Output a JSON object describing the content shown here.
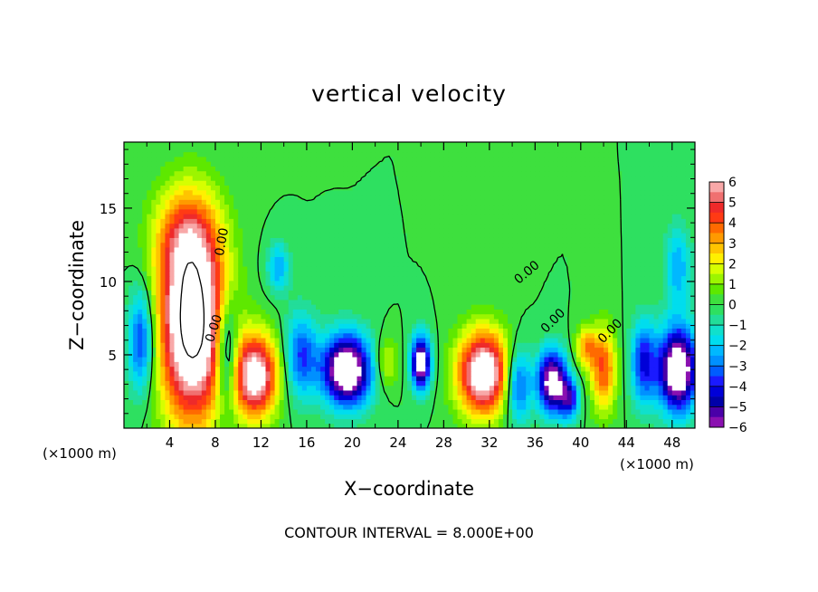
{
  "chart_data": {
    "type": "heatmap",
    "title": "vertical velocity",
    "xlabel": "X−coordinate",
    "ylabel": "Z−coordinate",
    "x_unit_left": "(×1000 m)",
    "x_unit_right": "(×1000 m)",
    "footer": "CONTOUR INTERVAL = 8.000E+00",
    "xlim": [
      0,
      50
    ],
    "ylim": [
      0,
      19.5
    ],
    "x_ticks": [
      4,
      8,
      12,
      16,
      20,
      24,
      28,
      32,
      36,
      40,
      44,
      48
    ],
    "y_ticks": [
      5,
      10,
      15
    ],
    "x_tick_labels": [
      "4",
      "8",
      "12",
      "16",
      "20",
      "24",
      "28",
      "32",
      "36",
      "40",
      "44",
      "48"
    ],
    "y_tick_labels": [
      "5",
      "10",
      "15"
    ],
    "colorbar": {
      "range": [
        -6,
        6
      ],
      "labels": [
        "6",
        "5",
        "4",
        "3",
        "2",
        "1",
        "0",
        "−1",
        "−2",
        "−3",
        "−4",
        "−5",
        "−6"
      ],
      "bands": [
        {
          "from": 5.5,
          "to": 6,
          "color": "#f8a8a8"
        },
        {
          "from": 5,
          "to": 5.5,
          "color": "#f07070"
        },
        {
          "from": 4.5,
          "to": 5,
          "color": "#ee2a2a"
        },
        {
          "from": 4,
          "to": 4.5,
          "color": "#ff3a14"
        },
        {
          "from": 3.5,
          "to": 4,
          "color": "#ff6a00"
        },
        {
          "from": 3,
          "to": 3.5,
          "color": "#ff9a00"
        },
        {
          "from": 2.5,
          "to": 3,
          "color": "#ffc400"
        },
        {
          "from": 2,
          "to": 2.5,
          "color": "#fff000"
        },
        {
          "from": 1.5,
          "to": 2,
          "color": "#d6ff00"
        },
        {
          "from": 1,
          "to": 1.5,
          "color": "#9cf500"
        },
        {
          "from": 0.5,
          "to": 1,
          "color": "#5ee800"
        },
        {
          "from": 0,
          "to": 0.5,
          "color": "#3ee03e"
        },
        {
          "from": -0.5,
          "to": 0,
          "color": "#2ee060"
        },
        {
          "from": -1,
          "to": -0.5,
          "color": "#22dd99"
        },
        {
          "from": -1.5,
          "to": -1,
          "color": "#10e0cc"
        },
        {
          "from": -2,
          "to": -1.5,
          "color": "#00ddee"
        },
        {
          "from": -2.5,
          "to": -2,
          "color": "#00b8ff"
        },
        {
          "from": -3,
          "to": -2.5,
          "color": "#0090ff"
        },
        {
          "from": -3.5,
          "to": -3,
          "color": "#005cff"
        },
        {
          "from": -4,
          "to": -3.5,
          "color": "#1a1aff"
        },
        {
          "from": -4.5,
          "to": -4,
          "color": "#0000d8"
        },
        {
          "from": -5,
          "to": -4.5,
          "color": "#0000a8"
        },
        {
          "from": -5.5,
          "to": -5,
          "color": "#4a00a8"
        },
        {
          "from": -6,
          "to": -5.5,
          "color": "#8a10b0"
        }
      ]
    },
    "features": [
      {
        "x": 6.0,
        "z": 7.0,
        "w": 9.0,
        "sx": 2.0,
        "sz": 4.5
      },
      {
        "x": 5.5,
        "z": 13.0,
        "w": 3.0,
        "sx": 2.0,
        "sz": 2.5
      },
      {
        "x": 11.5,
        "z": 3.6,
        "w": 7.0,
        "sx": 1.4,
        "sz": 2.0
      },
      {
        "x": 19.5,
        "z": 4.0,
        "w": -8.0,
        "sx": 1.5,
        "sz": 1.7
      },
      {
        "x": 15.5,
        "z": 5.0,
        "w": -3.5,
        "sx": 1.0,
        "sz": 2.0
      },
      {
        "x": 26.0,
        "z": 4.5,
        "w": -7.0,
        "sx": 0.6,
        "sz": 1.3
      },
      {
        "x": 31.5,
        "z": 3.8,
        "w": 7.5,
        "sx": 1.6,
        "sz": 2.0
      },
      {
        "x": 37.5,
        "z": 3.2,
        "w": -7.0,
        "sx": 0.9,
        "sz": 1.5
      },
      {
        "x": 42.0,
        "z": 4.0,
        "w": 4.0,
        "sx": 0.8,
        "sz": 2.0
      },
      {
        "x": 40.5,
        "z": 5.5,
        "w": 3.0,
        "sx": 0.7,
        "sz": 1.0
      },
      {
        "x": 48.5,
        "z": 4.0,
        "w": -8.0,
        "sx": 1.2,
        "sz": 2.0
      },
      {
        "x": 1.5,
        "z": 6.0,
        "w": -4.0,
        "sx": 0.8,
        "sz": 2.5
      },
      {
        "x": 9.0,
        "z": 5.0,
        "w": -4.0,
        "sx": 0.7,
        "sz": 2.5
      },
      {
        "x": 13.5,
        "z": 11.0,
        "w": -2.5,
        "sx": 0.7,
        "sz": 1.2
      },
      {
        "x": 23.0,
        "z": 4.5,
        "w": 2.0,
        "sx": 0.7,
        "sz": 1.2
      },
      {
        "x": 34.5,
        "z": 3.0,
        "w": -4.0,
        "sx": 0.8,
        "sz": 1.8
      },
      {
        "x": 45.5,
        "z": 4.5,
        "w": -4.0,
        "sx": 0.8,
        "sz": 2.0
      },
      {
        "x": 48.5,
        "z": 11.0,
        "w": -2.5,
        "sx": 0.8,
        "sz": 2.0
      },
      {
        "x": 39.0,
        "z": 2.0,
        "w": -4.0,
        "sx": 0.6,
        "sz": 1.0
      }
    ],
    "contour_labels": [
      {
        "text": "0.00",
        "x": 8.6,
        "z": 12.7,
        "angle": -80
      },
      {
        "text": "0.00",
        "x": 7.9,
        "z": 6.8,
        "angle": -72
      },
      {
        "text": "0.00",
        "x": 35.3,
        "z": 10.6,
        "angle": -40
      },
      {
        "text": "0.00",
        "x": 37.6,
        "z": 7.3,
        "angle": -45
      },
      {
        "text": "0.00",
        "x": 42.6,
        "z": 6.6,
        "angle": -45
      }
    ]
  }
}
